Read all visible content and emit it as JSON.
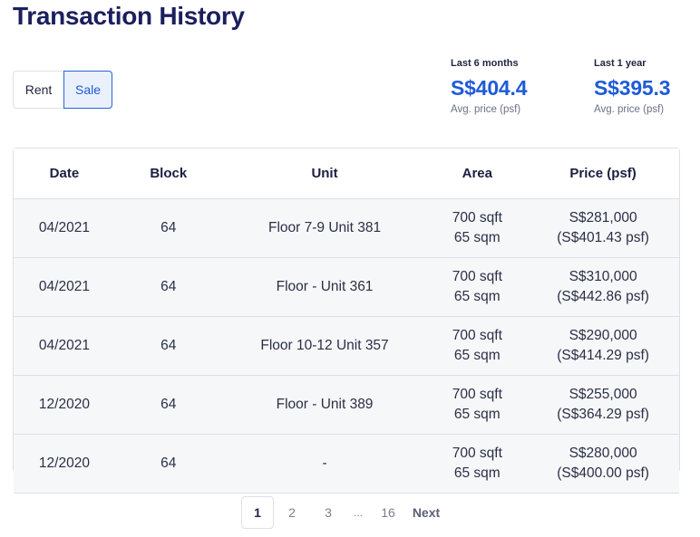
{
  "header": {
    "title": "Transaction History"
  },
  "toggle": {
    "rent_label": "Rent",
    "sale_label": "Sale",
    "selected": "Sale"
  },
  "stats": [
    {
      "period": "Last 6 months",
      "value": "S$404.4",
      "sub": "Avg. price (psf)"
    },
    {
      "period": "Last 1 year",
      "value": "S$395.3",
      "sub": "Avg. price (psf)"
    }
  ],
  "table": {
    "columns": [
      "Date",
      "Block",
      "Unit",
      "Area",
      "Price (psf)"
    ],
    "rows": [
      {
        "date": "04/2021",
        "block": "64",
        "unit": "Floor 7-9 Unit 381",
        "area_sqft": "700 sqft",
        "area_sqm": "65 sqm",
        "price": "S$281,000",
        "psf": "(S$401.43 psf)"
      },
      {
        "date": "04/2021",
        "block": "64",
        "unit": "Floor - Unit 361",
        "area_sqft": "700 sqft",
        "area_sqm": "65 sqm",
        "price": "S$310,000",
        "psf": "(S$442.86 psf)"
      },
      {
        "date": "04/2021",
        "block": "64",
        "unit": "Floor 10-12 Unit 357",
        "area_sqft": "700 sqft",
        "area_sqm": "65 sqm",
        "price": "S$290,000",
        "psf": "(S$414.29 psf)"
      },
      {
        "date": "12/2020",
        "block": "64",
        "unit": "Floor - Unit 389",
        "area_sqft": "700 sqft",
        "area_sqm": "65 sqm",
        "price": "S$255,000",
        "psf": "(S$364.29 psf)"
      },
      {
        "date": "12/2020",
        "block": "64",
        "unit": "-",
        "area_sqft": "700 sqft",
        "area_sqm": "65 sqm",
        "price": "S$280,000",
        "psf": "(S$400.00 psf)"
      }
    ]
  },
  "pagination": {
    "pages": [
      "1",
      "2",
      "3",
      "...",
      "16"
    ],
    "current": "1",
    "next_label": "Next"
  }
}
